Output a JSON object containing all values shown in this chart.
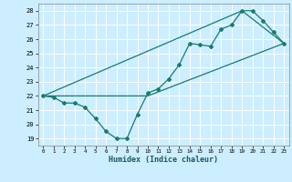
{
  "title": "",
  "xlabel": "Humidex (Indice chaleur)",
  "bg_color": "#cceeff",
  "line_color": "#1a7a6e",
  "grid_color": "#ffffff",
  "xlim": [
    -0.5,
    23.5
  ],
  "ylim": [
    18.5,
    28.5
  ],
  "xticks": [
    0,
    1,
    2,
    3,
    4,
    5,
    6,
    7,
    8,
    9,
    10,
    11,
    12,
    13,
    14,
    15,
    16,
    17,
    18,
    19,
    20,
    21,
    22,
    23
  ],
  "yticks": [
    19,
    20,
    21,
    22,
    23,
    24,
    25,
    26,
    27,
    28
  ],
  "line1_x": [
    0,
    1,
    2,
    3,
    4,
    5,
    6,
    7,
    8,
    9,
    10,
    11,
    12,
    13,
    14,
    15,
    16,
    17,
    18,
    19,
    20,
    21,
    22,
    23
  ],
  "line1_y": [
    22,
    21.9,
    21.5,
    21.5,
    21.2,
    20.4,
    19.5,
    19.0,
    19.0,
    20.7,
    22.2,
    22.5,
    23.2,
    24.2,
    25.7,
    25.6,
    25.5,
    26.7,
    27.0,
    28.0,
    28.0,
    27.3,
    26.5,
    25.7
  ],
  "line2_x": [
    0,
    10,
    23
  ],
  "line2_y": [
    22,
    22,
    25.7
  ],
  "line3_x": [
    0,
    19,
    23
  ],
  "line3_y": [
    22,
    28.0,
    25.7
  ]
}
